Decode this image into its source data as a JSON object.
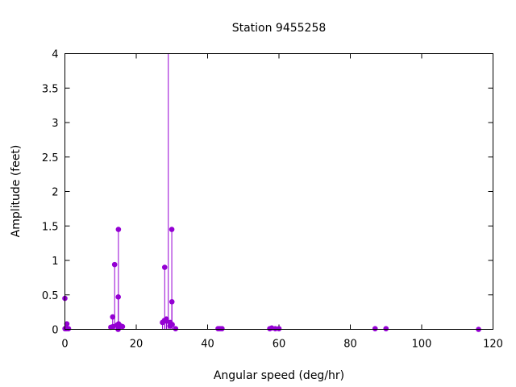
{
  "chart_data": {
    "type": "stem",
    "title": "Station 9455258",
    "xlabel": "Angular speed (deg/hr)",
    "ylabel": "Amplitude (feet)",
    "xlim": [
      0,
      120
    ],
    "ylim": [
      0,
      4
    ],
    "xticks": [
      "0",
      "20",
      "40",
      "60",
      "80",
      "100",
      "120"
    ],
    "yticks": [
      "0",
      "0.5",
      "1",
      "1.5",
      "2",
      "2.5",
      "3",
      "3.5",
      "4"
    ],
    "grid": false,
    "color": "#9400d3",
    "points": [
      {
        "x": 0.0,
        "y": 0.45
      },
      {
        "x": 0.04,
        "y": 0.01
      },
      {
        "x": 0.08,
        "y": 0.01
      },
      {
        "x": 0.5,
        "y": 0.01
      },
      {
        "x": 0.55,
        "y": 0.08
      },
      {
        "x": 1.0,
        "y": 0.01
      },
      {
        "x": 12.85,
        "y": 0.03
      },
      {
        "x": 13.39,
        "y": 0.18
      },
      {
        "x": 13.47,
        "y": 0.04
      },
      {
        "x": 13.94,
        "y": 0.94
      },
      {
        "x": 14.5,
        "y": 0.06
      },
      {
        "x": 14.96,
        "y": 0.47
      },
      {
        "x": 15.0,
        "y": 1.45
      },
      {
        "x": 14.92,
        "y": 0.0
      },
      {
        "x": 15.04,
        "y": 0.08
      },
      {
        "x": 15.59,
        "y": 0.05
      },
      {
        "x": 16.14,
        "y": 0.04
      },
      {
        "x": 27.34,
        "y": 0.1
      },
      {
        "x": 27.9,
        "y": 0.13
      },
      {
        "x": 27.97,
        "y": 0.9
      },
      {
        "x": 28.44,
        "y": 0.15
      },
      {
        "x": 28.51,
        "y": 0.12
      },
      {
        "x": 28.98,
        "y": 4.0
      },
      {
        "x": 29.46,
        "y": 0.05
      },
      {
        "x": 29.53,
        "y": 0.1
      },
      {
        "x": 29.96,
        "y": 1.45
      },
      {
        "x": 30.0,
        "y": 0.4
      },
      {
        "x": 30.08,
        "y": 0.07
      },
      {
        "x": 31.02,
        "y": 0.01
      },
      {
        "x": 42.93,
        "y": 0.01
      },
      {
        "x": 43.48,
        "y": 0.01
      },
      {
        "x": 44.03,
        "y": 0.01
      },
      {
        "x": 57.42,
        "y": 0.01
      },
      {
        "x": 57.97,
        "y": 0.02
      },
      {
        "x": 58.98,
        "y": 0.01
      },
      {
        "x": 60.0,
        "y": 0.01
      },
      {
        "x": 86.95,
        "y": 0.01
      },
      {
        "x": 90.0,
        "y": 0.01
      },
      {
        "x": 115.94,
        "y": 0.0
      }
    ]
  }
}
